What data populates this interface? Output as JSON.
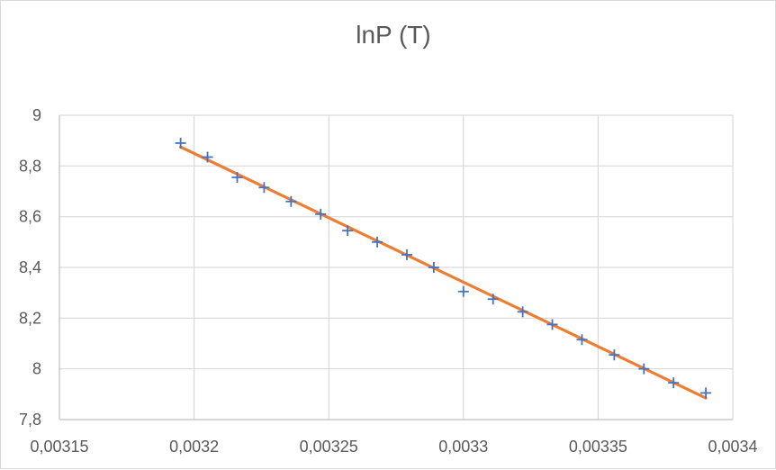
{
  "chart_data": {
    "type": "scatter",
    "title": "lnP (T)",
    "xlim": [
      0.00315,
      0.0034
    ],
    "ylim": [
      7.8,
      9
    ],
    "x_ticks": [
      0.00315,
      0.0032,
      0.00325,
      0.0033,
      0.00335,
      0.0034
    ],
    "x_tick_labels": [
      "0,00315",
      "0,0032",
      "0,00325",
      "0,0033",
      "0,00335",
      "0,0034"
    ],
    "y_ticks": [
      7.8,
      8,
      8.2,
      8.4,
      8.6,
      8.8,
      9
    ],
    "y_tick_labels": [
      "7,8",
      "8",
      "8,2",
      "8,4",
      "8,6",
      "8,8",
      "9"
    ],
    "grid": true,
    "legend": "none",
    "series": [
      {
        "marker": "plus",
        "color": "#4472c4",
        "x": [
          0.003195,
          0.003205,
          0.003216,
          0.003226,
          0.003236,
          0.003247,
          0.003257,
          0.003268,
          0.003279,
          0.003289,
          0.0033,
          0.003311,
          0.003322,
          0.003333,
          0.003344,
          0.003356,
          0.003367,
          0.003378,
          0.00339
        ],
        "y": [
          8.89,
          8.835,
          8.755,
          8.715,
          8.66,
          8.61,
          8.545,
          8.5,
          8.45,
          8.4,
          8.305,
          8.275,
          8.225,
          8.175,
          8.115,
          8.055,
          8.0,
          7.945,
          7.905
        ]
      }
    ],
    "trendline": {
      "type": "linear",
      "color": "#ed7d31",
      "x": [
        0.003195,
        0.00339
      ],
      "y": [
        8.875,
        7.885
      ]
    }
  }
}
